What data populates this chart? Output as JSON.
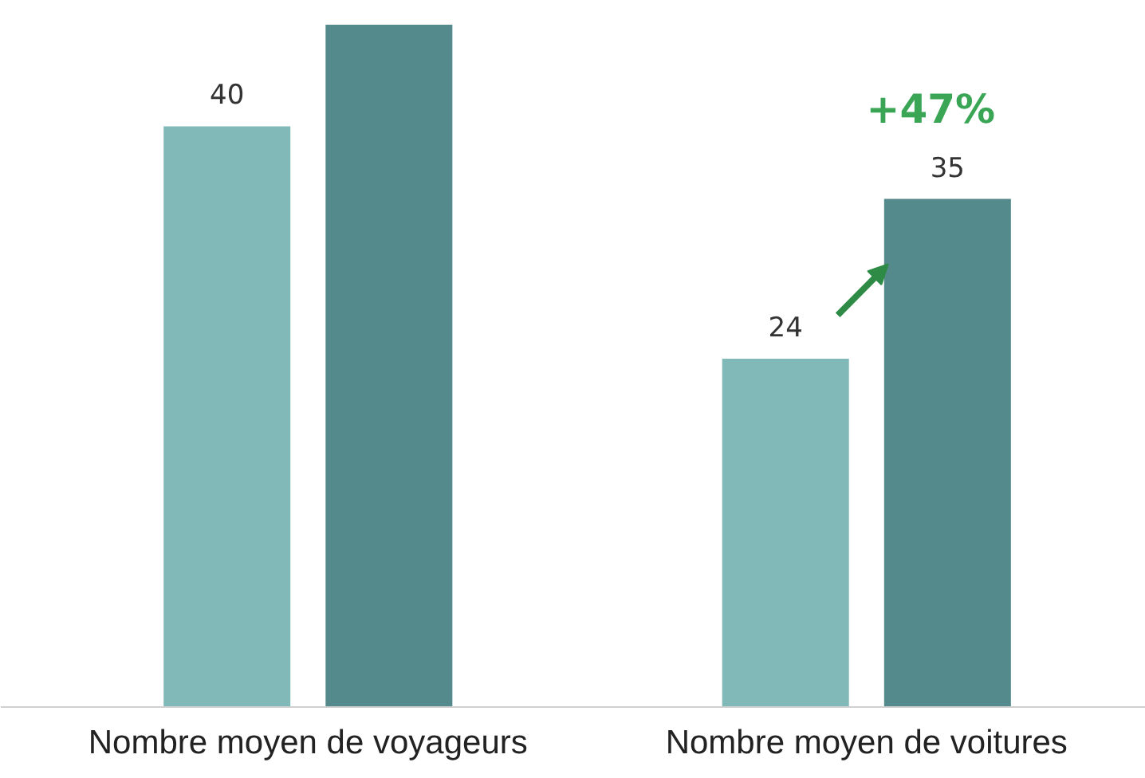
{
  "chart_data": {
    "type": "bar",
    "categories": [
      "Nombre moyen de voyageurs",
      "Nombre moyen de voitures"
    ],
    "series": [
      {
        "color": "#80b9b8",
        "values": [
          40,
          24
        ],
        "value_labels": [
          "40",
          "24"
        ]
      },
      {
        "color": "#548a8b",
        "values": [
          47,
          35
        ],
        "value_labels": [
          null,
          "35"
        ]
      }
    ],
    "ylim": [
      0,
      47
    ],
    "annotations": [
      "+47%"
    ]
  }
}
